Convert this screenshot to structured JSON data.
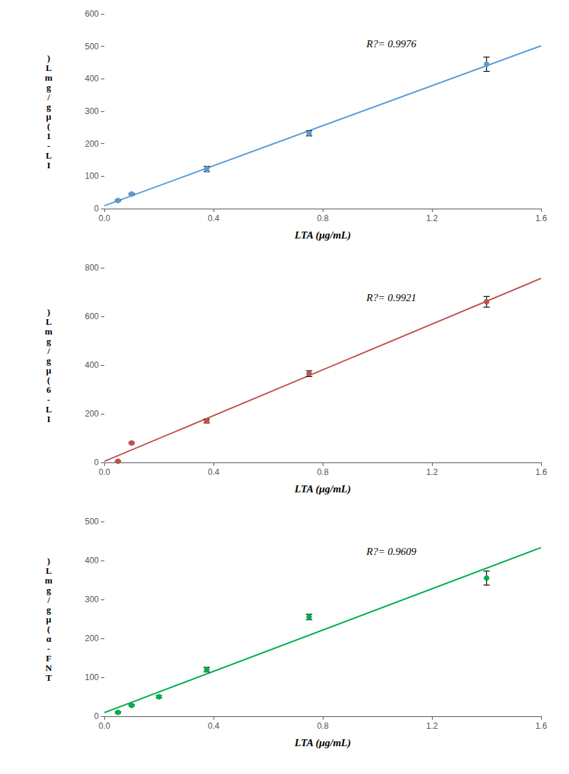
{
  "chart_data": [
    {
      "type": "scatter",
      "color": "#5b9bd5",
      "marker": "o",
      "x": [
        0.05,
        0.1,
        0.375,
        0.75,
        1.4
      ],
      "values": [
        25,
        45,
        122,
        232,
        445
      ],
      "yerr": [
        2,
        2,
        8,
        8,
        22
      ],
      "fit": {
        "x": [
          0,
          1.6
        ],
        "values": [
          8.9,
          502.06
        ]
      },
      "annotation": "R?= 0.9976",
      "xlabel": "LTA (μg/mL)",
      "ylabel": ")\nL\nm\ng\n/\ng\nμ\n(\n1\n-\nL\nI",
      "xlim": [
        0,
        1.6
      ],
      "xticks": [
        {
          "value": 0.0,
          "label": "0.0"
        },
        0.4,
        0.8,
        1.2,
        1.6
      ],
      "ylim": [
        0,
        600
      ],
      "yticks": [
        0,
        100,
        200,
        300,
        400,
        500,
        600
      ],
      "grid": false
    },
    {
      "type": "scatter",
      "color": "#c0504d",
      "marker": "o",
      "x": [
        0.05,
        0.1,
        0.375,
        0.75,
        1.4
      ],
      "values": [
        5,
        80,
        170,
        365,
        660
      ],
      "yerr": [
        1,
        4,
        8,
        12,
        22
      ],
      "fit": {
        "x": [
          0,
          1.6
        ],
        "values": [
          4.53,
          756.58
        ]
      },
      "annotation": "R?= 0.9921",
      "xlabel": "LTA (μg/mL)",
      "ylabel": ")\nL\nm\ng\n/\ng\nμ\n(\n6\n-\nL\nI",
      "xlim": [
        0,
        1.6
      ],
      "xticks": [
        {
          "value": 0.0,
          "label": "0.0"
        },
        0.4,
        0.8,
        1.2,
        1.6
      ],
      "ylim": [
        0,
        800
      ],
      "yticks": [
        0,
        200,
        400,
        600,
        800
      ],
      "grid": false
    },
    {
      "type": "scatter",
      "color": "#00b050",
      "marker": "o",
      "x": [
        0.05,
        0.1,
        0.2,
        0.375,
        0.75,
        1.4
      ],
      "values": [
        10,
        28,
        50,
        120,
        255,
        355
      ],
      "yerr": [
        2,
        2,
        3,
        6,
        7,
        18
      ],
      "fit": {
        "x": [
          0,
          1.6
        ],
        "values": [
          9.35,
          433.37
        ]
      },
      "annotation": "R?= 0.9609",
      "xlabel": "LTA (μg/mL)",
      "ylabel": ")\nL\nm\ng\n/\ng\nμ\n(\nα\n-\nF\nN\nT",
      "xlim": [
        0,
        1.6
      ],
      "xticks": [
        {
          "value": 0.0,
          "label": "0.0"
        },
        0.4,
        0.8,
        1.2,
        1.6
      ],
      "ylim": [
        0,
        500
      ],
      "yticks": [
        0,
        100,
        200,
        300,
        400,
        500
      ],
      "grid": false
    }
  ]
}
